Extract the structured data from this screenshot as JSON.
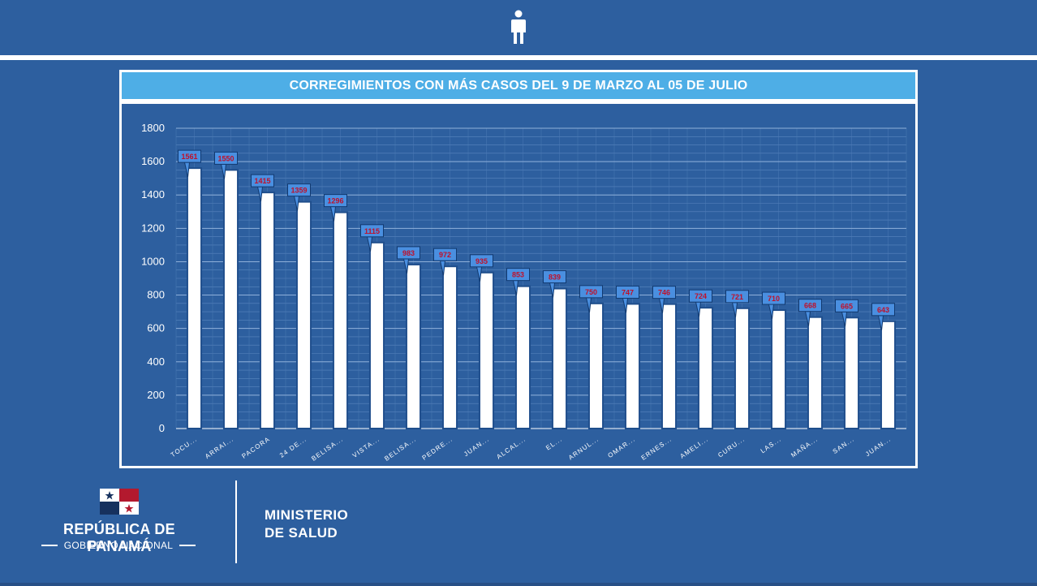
{
  "header": {
    "icon": "person-icon"
  },
  "chart_title": "CORREGIMIENTOS CON MÁS CASOS DEL 9 DE MARZO AL 05 DE JULIO",
  "chart_data": {
    "type": "bar",
    "title": "CORREGIMIENTOS CON MÁS CASOS DEL 9 DE MARZO AL 05 DE JULIO",
    "categories": [
      "TOCU...",
      "ARRAI...",
      "PACORA",
      "24 DE...",
      "BELISA...",
      "VISTA...",
      "BELISA...",
      "PEDRE...",
      "JUAN...",
      "ALCAL...",
      "EL...",
      "ARNUL...",
      "OMAR...",
      "ERNES...",
      "AMELI...",
      "CURU...",
      "LAS...",
      "MAÑA...",
      "SAN...",
      "JUAN..."
    ],
    "values": [
      1561,
      1550,
      1415,
      1359,
      1296,
      1115,
      983,
      972,
      935,
      853,
      839,
      750,
      747,
      746,
      724,
      721,
      710,
      668,
      665,
      643
    ],
    "yticks": [
      0,
      200,
      400,
      600,
      800,
      1000,
      1200,
      1400,
      1600,
      1800
    ],
    "ylim": [
      0,
      1800
    ],
    "grid": true,
    "data_labels": true,
    "colors": {
      "bar": "#ffffff",
      "bar_edge": "#1f4e8c",
      "label_fill": "#4a8fe0",
      "label_text": "#c0102a"
    }
  },
  "footer": {
    "republic": "REPÚBLICA DE PANAMÁ",
    "gobierno": "GOBIERNO NACIONAL",
    "ministerio_line1": "MINISTERIO",
    "ministerio_line2": "DE SALUD",
    "flag": "panama-flag"
  }
}
